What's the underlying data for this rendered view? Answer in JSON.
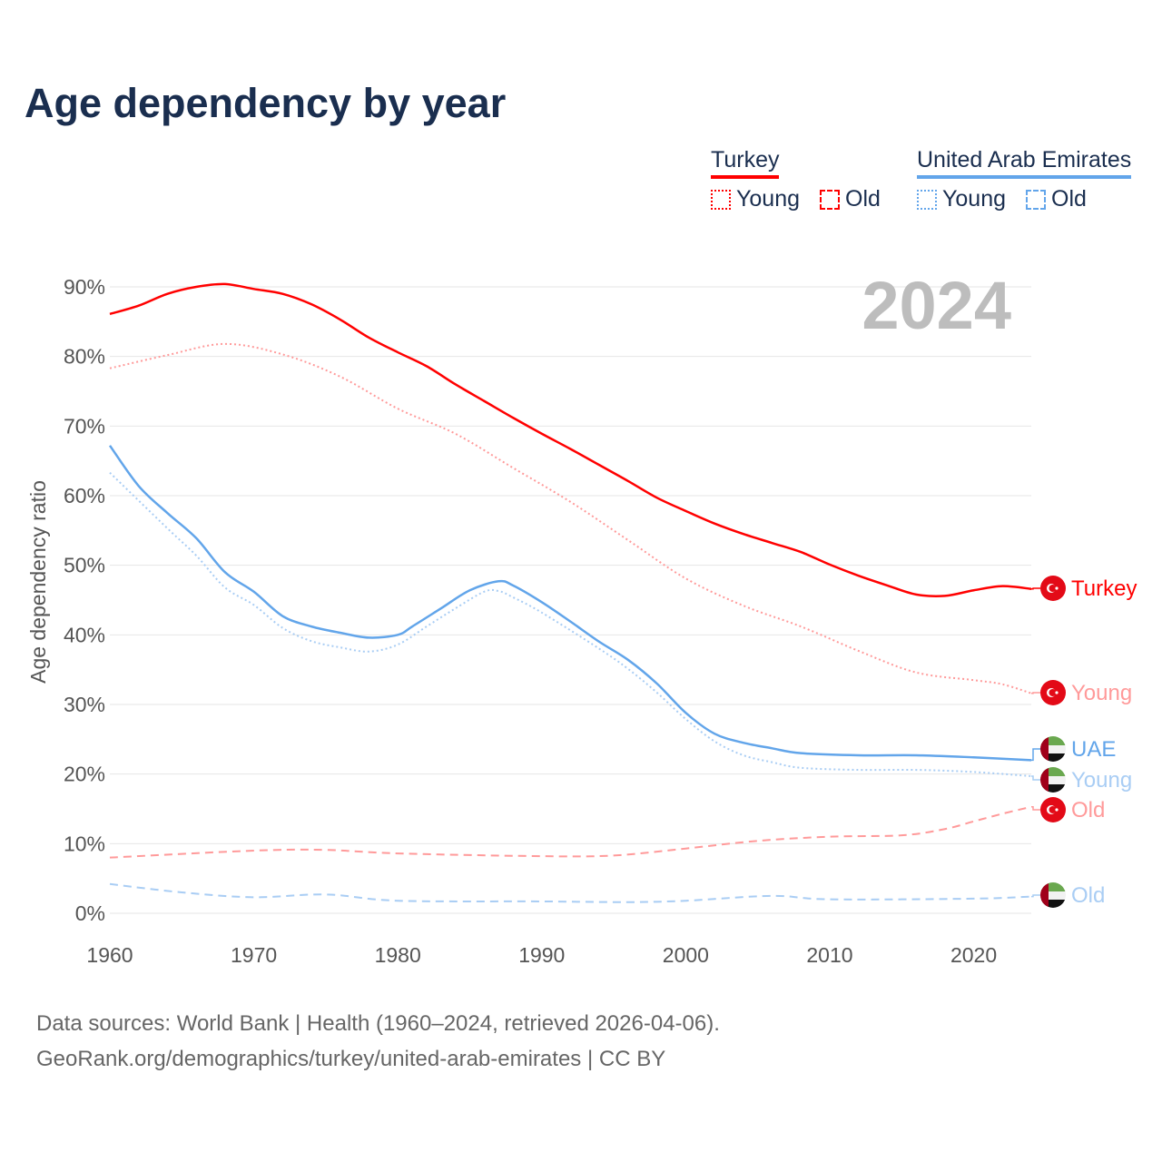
{
  "title": "Age dependency by year",
  "legend": {
    "countries": [
      {
        "name": "Turkey",
        "color": "#ff0000"
      },
      {
        "name": "United Arab Emirates",
        "color": "#62a5ea"
      }
    ],
    "items": [
      "Young",
      "Old"
    ]
  },
  "year_label": "2024",
  "footer": {
    "line1": "Data sources: World Bank | Health (1960–2024, retrieved 2026-04-06).",
    "line2": "GeoRank.org/demographics/turkey/united-arab-emirates | CC BY"
  },
  "chart_data": {
    "type": "line",
    "title": "Age dependency by year",
    "xlabel": "",
    "ylabel": "Age dependency ratio",
    "xlim": [
      1960,
      2024
    ],
    "ylim": [
      0,
      90
    ],
    "x_ticks": [
      "1960",
      "1970",
      "1980",
      "1990",
      "2000",
      "2010",
      "2020"
    ],
    "y_ticks": [
      "0%",
      "10%",
      "20%",
      "30%",
      "40%",
      "50%",
      "60%",
      "70%",
      "80%",
      "90%"
    ],
    "grid": true,
    "series": [
      {
        "name": "Turkey",
        "end_label": "Turkey",
        "country": "turkey",
        "color": "#ff0000",
        "style": "solid",
        "points": [
          [
            1960,
            86.1
          ],
          [
            1962,
            87.3
          ],
          [
            1964,
            89
          ],
          [
            1966,
            90
          ],
          [
            1968,
            90.4
          ],
          [
            1970,
            89.7
          ],
          [
            1972,
            89
          ],
          [
            1974,
            87.5
          ],
          [
            1976,
            85.3
          ],
          [
            1978,
            82.7
          ],
          [
            1980,
            80.6
          ],
          [
            1982,
            78.6
          ],
          [
            1984,
            76
          ],
          [
            1986,
            73.6
          ],
          [
            1988,
            71.2
          ],
          [
            1990,
            68.9
          ],
          [
            1992,
            66.7
          ],
          [
            1994,
            64.4
          ],
          [
            1996,
            62.1
          ],
          [
            1998,
            59.7
          ],
          [
            2000,
            57.8
          ],
          [
            2002,
            56
          ],
          [
            2004,
            54.5
          ],
          [
            2006,
            53.2
          ],
          [
            2008,
            51.9
          ],
          [
            2010,
            50.1
          ],
          [
            2012,
            48.5
          ],
          [
            2014,
            47.1
          ],
          [
            2016,
            45.8
          ],
          [
            2018,
            45.6
          ],
          [
            2020,
            46.4
          ],
          [
            2022,
            47
          ],
          [
            2024,
            46.6
          ]
        ]
      },
      {
        "name": "Turkey Young",
        "end_label": "Young",
        "country": "turkey",
        "color": "#ff9a9a",
        "style": "dotted",
        "points": [
          [
            1960,
            78.3
          ],
          [
            1964,
            80.2
          ],
          [
            1968,
            81.8
          ],
          [
            1972,
            80.3
          ],
          [
            1976,
            77.1
          ],
          [
            1980,
            72.5
          ],
          [
            1984,
            68.9
          ],
          [
            1988,
            64
          ],
          [
            1992,
            59.1
          ],
          [
            1996,
            53.6
          ],
          [
            2000,
            48.1
          ],
          [
            2004,
            44.2
          ],
          [
            2008,
            41.2
          ],
          [
            2012,
            37.7
          ],
          [
            2016,
            34.6
          ],
          [
            2020,
            33.5
          ],
          [
            2022,
            32.9
          ],
          [
            2024,
            31.6
          ]
        ]
      },
      {
        "name": "UAE",
        "end_label": "UAE",
        "country": "uae",
        "color": "#62a5ea",
        "style": "solid",
        "points": [
          [
            1960,
            67.2
          ],
          [
            1962,
            61.4
          ],
          [
            1964,
            57.5
          ],
          [
            1966,
            53.9
          ],
          [
            1968,
            49
          ],
          [
            1970,
            46.2
          ],
          [
            1972,
            42.7
          ],
          [
            1974,
            41.2
          ],
          [
            1976,
            40.3
          ],
          [
            1978,
            39.6
          ],
          [
            1980,
            40
          ],
          [
            1981,
            41.2
          ],
          [
            1983,
            43.8
          ],
          [
            1985,
            46.4
          ],
          [
            1987,
            47.7
          ],
          [
            1988,
            47.1
          ],
          [
            1990,
            44.7
          ],
          [
            1992,
            41.9
          ],
          [
            1994,
            39
          ],
          [
            1996,
            36.4
          ],
          [
            1998,
            33
          ],
          [
            2000,
            28.8
          ],
          [
            2002,
            25.8
          ],
          [
            2004,
            24.5
          ],
          [
            2006,
            23.7
          ],
          [
            2008,
            23
          ],
          [
            2012,
            22.7
          ],
          [
            2016,
            22.7
          ],
          [
            2020,
            22.4
          ],
          [
            2024,
            22
          ]
        ]
      },
      {
        "name": "UAE Young",
        "end_label": "Young",
        "country": "uae",
        "color": "#a9cdf4",
        "style": "dotted",
        "points": [
          [
            1960,
            63.3
          ],
          [
            1964,
            55.3
          ],
          [
            1966,
            51.4
          ],
          [
            1968,
            46.8
          ],
          [
            1970,
            44.3
          ],
          [
            1972,
            41
          ],
          [
            1974,
            39.1
          ],
          [
            1976,
            38.2
          ],
          [
            1978,
            37.6
          ],
          [
            1980,
            38.6
          ],
          [
            1982,
            41.2
          ],
          [
            1984,
            43.8
          ],
          [
            1986,
            46.2
          ],
          [
            1987,
            46.3
          ],
          [
            1988,
            45.4
          ],
          [
            1990,
            43.2
          ],
          [
            1994,
            38
          ],
          [
            1996,
            35.1
          ],
          [
            1998,
            31.7
          ],
          [
            2000,
            27.9
          ],
          [
            2002,
            24.7
          ],
          [
            2004,
            22.7
          ],
          [
            2006,
            21.7
          ],
          [
            2008,
            20.9
          ],
          [
            2012,
            20.6
          ],
          [
            2016,
            20.6
          ],
          [
            2020,
            20.3
          ],
          [
            2024,
            19.7
          ]
        ]
      },
      {
        "name": "Turkey Old",
        "end_label": "Old",
        "country": "turkey",
        "color": "#ff9a9a",
        "style": "dashed",
        "points": [
          [
            1960,
            8
          ],
          [
            1970,
            9
          ],
          [
            1975,
            9.1
          ],
          [
            1980,
            8.6
          ],
          [
            1990,
            8.2
          ],
          [
            1995,
            8.3
          ],
          [
            2000,
            9.3
          ],
          [
            2005,
            10.4
          ],
          [
            2010,
            11
          ],
          [
            2015,
            11.2
          ],
          [
            2018,
            12.1
          ],
          [
            2020,
            13.2
          ],
          [
            2022,
            14.3
          ],
          [
            2024,
            15.3
          ]
        ]
      },
      {
        "name": "UAE Old",
        "end_label": "Old",
        "country": "uae",
        "color": "#a9cdf4",
        "style": "dashed",
        "points": [
          [
            1960,
            4.2
          ],
          [
            1965,
            3
          ],
          [
            1970,
            2.3
          ],
          [
            1975,
            2.7
          ],
          [
            1980,
            1.8
          ],
          [
            1990,
            1.7
          ],
          [
            1996,
            1.6
          ],
          [
            2000,
            1.8
          ],
          [
            2006,
            2.5
          ],
          [
            2010,
            2
          ],
          [
            2020,
            2.1
          ],
          [
            2024,
            2.4
          ]
        ]
      }
    ]
  }
}
